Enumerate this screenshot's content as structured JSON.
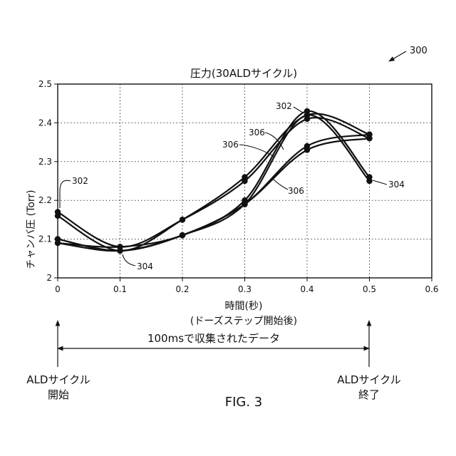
{
  "ref_numeral": "300",
  "chart_data": {
    "type": "line",
    "title": "圧力(30ALDサイクル)",
    "xlabel_lines": [
      "時間(秒)",
      "(ドーズステップ開始後)"
    ],
    "ylabel": "チャンバ圧 (Torr)",
    "xlim": [
      0,
      0.6
    ],
    "ylim": [
      2,
      2.5
    ],
    "x_ticks": [
      "0",
      "0.1",
      "0.2",
      "0.3",
      "0.4",
      "0.5",
      "0.6"
    ],
    "y_ticks": [
      "2",
      "2.1",
      "2.2",
      "2.3",
      "2.4",
      "2.5"
    ],
    "grid": true,
    "x": [
      0,
      0.1,
      0.2,
      0.3,
      0.4,
      0.5
    ],
    "series": [
      {
        "values": [
          2.16,
          2.07,
          2.15,
          2.26,
          2.42,
          2.37
        ]
      },
      {
        "values": [
          2.17,
          2.08,
          2.15,
          2.25,
          2.41,
          2.36
        ]
      },
      {
        "values": [
          2.1,
          2.07,
          2.11,
          2.19,
          2.42,
          2.25
        ]
      },
      {
        "values": [
          2.09,
          2.08,
          2.11,
          2.2,
          2.43,
          2.26
        ]
      },
      {
        "values": [
          2.1,
          2.07,
          2.11,
          2.19,
          2.34,
          2.37
        ]
      },
      {
        "values": [
          2.09,
          2.07,
          2.11,
          2.19,
          2.33,
          2.36
        ]
      }
    ],
    "annotations": [
      {
        "text": "302",
        "x": 0.0,
        "y": 2.17
      },
      {
        "text": "302",
        "x": 0.4,
        "y": 2.42
      },
      {
        "text": "304",
        "x": 0.1,
        "y": 2.07
      },
      {
        "text": "304",
        "x": 0.5,
        "y": 2.25
      },
      {
        "text": "306",
        "x": 0.33,
        "y": 2.36
      },
      {
        "text": "306",
        "x": 0.3,
        "y": 2.31
      },
      {
        "text": "306",
        "x": 0.34,
        "y": 2.22
      }
    ]
  },
  "span_label": "100msで収集されたデータ",
  "start_label_lines": [
    "ALDサイクル",
    "開始"
  ],
  "end_label_lines": [
    "ALDサイクル",
    "終了"
  ],
  "figure_label": "FIG. 3"
}
